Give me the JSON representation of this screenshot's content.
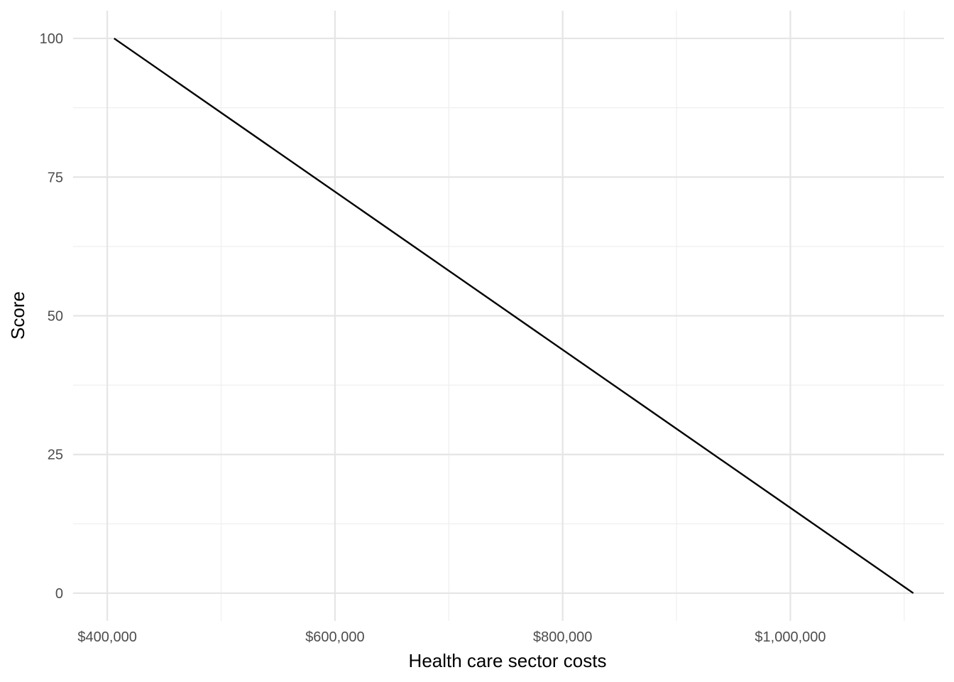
{
  "chart_data": {
    "type": "line",
    "title": "",
    "xlabel": "Health care sector costs",
    "ylabel": "Score",
    "xlim": [
      370000,
      1135000
    ],
    "ylim": [
      -5,
      105
    ],
    "x_ticks": [
      400000,
      600000,
      800000,
      1000000
    ],
    "x_tick_labels": [
      "$400,000",
      "$600,000",
      "$800,000",
      "$1,000,000"
    ],
    "x_minor_ticks": [
      500000,
      700000,
      900000,
      1100000
    ],
    "y_ticks": [
      0,
      25,
      50,
      75,
      100
    ],
    "y_tick_labels": [
      "0",
      "25",
      "50",
      "75",
      "100"
    ],
    "y_minor_ticks": [
      12.5,
      37.5,
      62.5,
      87.5
    ],
    "grid": true,
    "legend": "none",
    "series": [
      {
        "color": "#000000",
        "x": [
          406000,
          1108000
        ],
        "y": [
          100,
          0
        ]
      }
    ]
  }
}
